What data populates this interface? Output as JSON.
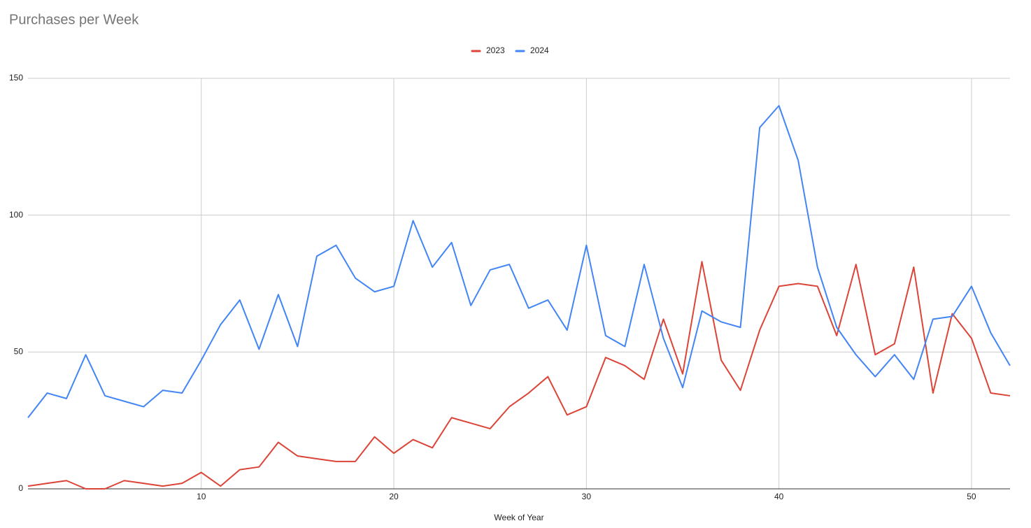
{
  "chart_data": {
    "type": "line",
    "title": "Purchases per Week",
    "x_label": "Week of Year",
    "x": [
      1,
      2,
      3,
      4,
      5,
      6,
      7,
      8,
      9,
      10,
      11,
      12,
      13,
      14,
      15,
      16,
      17,
      18,
      19,
      20,
      21,
      22,
      23,
      24,
      25,
      26,
      27,
      28,
      29,
      30,
      31,
      32,
      33,
      34,
      35,
      36,
      37,
      38,
      39,
      40,
      41,
      42,
      43,
      44,
      45,
      46,
      47,
      48,
      49,
      50,
      51,
      52
    ],
    "series": [
      {
        "name": "2023",
        "color": "#db4437",
        "values": [
          1,
          2,
          3,
          0,
          0,
          3,
          2,
          1,
          2,
          6,
          1,
          7,
          8,
          17,
          12,
          11,
          10,
          10,
          19,
          13,
          18,
          15,
          26,
          24,
          22,
          30,
          35,
          41,
          27,
          30,
          48,
          45,
          40,
          62,
          42,
          83,
          47,
          36,
          58,
          74,
          75,
          74,
          56,
          82,
          49,
          53,
          81,
          35,
          64,
          55,
          35,
          34
        ]
      },
      {
        "name": "2024",
        "color": "#4285f4",
        "values": [
          26,
          35,
          33,
          49,
          34,
          32,
          30,
          36,
          35,
          47,
          60,
          69,
          51,
          71,
          52,
          85,
          89,
          77,
          72,
          74,
          98,
          81,
          90,
          67,
          80,
          82,
          66,
          69,
          58,
          89,
          56,
          52,
          82,
          55,
          37,
          65,
          61,
          59,
          132,
          140,
          120,
          81,
          59,
          49,
          41,
          49,
          40,
          62,
          63,
          74,
          57,
          45
        ]
      }
    ],
    "xlim": [
      1,
      52
    ],
    "xticks": [
      10,
      20,
      30,
      40,
      50
    ],
    "ylim": [
      0,
      150
    ],
    "yticks": [
      0,
      50,
      100,
      150
    ],
    "grid": true,
    "legend": "top"
  }
}
